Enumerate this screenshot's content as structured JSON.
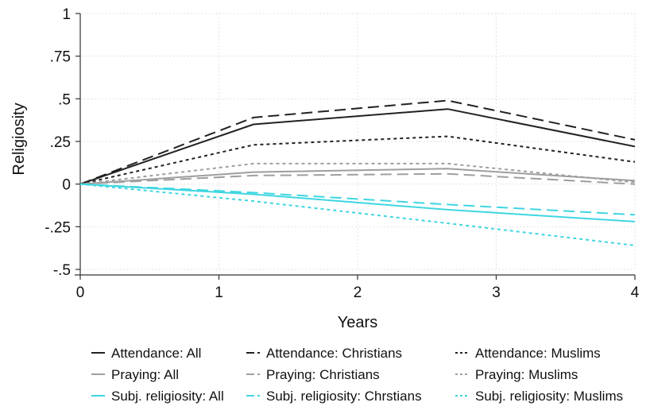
{
  "chart_data": {
    "type": "line",
    "xlabel": "Years",
    "ylabel": "Religiosity",
    "xlim": [
      0,
      4
    ],
    "ylim": [
      -0.5,
      1
    ],
    "x_ticks": [
      {
        "value": 0,
        "label": "0"
      },
      {
        "value": 1,
        "label": "1"
      },
      {
        "value": 2,
        "label": "2"
      },
      {
        "value": 3,
        "label": "3"
      },
      {
        "value": 4,
        "label": "4"
      }
    ],
    "y_ticks": [
      {
        "value": -0.5,
        "label": "-.5"
      },
      {
        "value": -0.25,
        "label": "-.25"
      },
      {
        "value": 0,
        "label": "0"
      },
      {
        "value": 0.25,
        "label": ".25"
      },
      {
        "value": 0.5,
        "label": ".5"
      },
      {
        "value": 0.75,
        "label": ".75"
      },
      {
        "value": 1,
        "label": "1"
      }
    ],
    "grid": true,
    "legend_position": "bottom",
    "series": [
      {
        "name": "Attendance: All",
        "color": "#222222",
        "style": "solid",
        "x": [
          0,
          1.25,
          2.65,
          4
        ],
        "y": [
          0,
          0.35,
          0.44,
          0.22
        ]
      },
      {
        "name": "Attendance: Christians",
        "color": "#222222",
        "style": "dash",
        "x": [
          0,
          1.25,
          2.65,
          4
        ],
        "y": [
          0,
          0.39,
          0.49,
          0.26
        ]
      },
      {
        "name": "Attendance: Muslims",
        "color": "#222222",
        "style": "dot",
        "x": [
          0,
          1.25,
          2.65,
          4
        ],
        "y": [
          0,
          0.23,
          0.28,
          0.13
        ]
      },
      {
        "name": "Praying: All",
        "color": "#9e9e9e",
        "style": "solid",
        "x": [
          0,
          1.25,
          2.65,
          4
        ],
        "y": [
          0,
          0.07,
          0.09,
          0.02
        ]
      },
      {
        "name": "Praying: Christians",
        "color": "#9e9e9e",
        "style": "dash",
        "x": [
          0,
          1.25,
          2.65,
          4
        ],
        "y": [
          0,
          0.05,
          0.06,
          0.0
        ]
      },
      {
        "name": "Praying: Muslims",
        "color": "#9e9e9e",
        "style": "dot",
        "x": [
          0,
          1.25,
          2.65,
          4
        ],
        "y": [
          0,
          0.12,
          0.12,
          0.01
        ]
      },
      {
        "name": "Subj. religiosity: All",
        "color": "#3fd6e0",
        "style": "solid",
        "x": [
          0,
          1.25,
          2.65,
          4
        ],
        "y": [
          0,
          -0.06,
          -0.15,
          -0.22
        ]
      },
      {
        "name": "Subj. religiosity: Chrstians",
        "color": "#3fd6e0",
        "style": "dash",
        "x": [
          0,
          1.25,
          2.65,
          4
        ],
        "y": [
          0,
          -0.05,
          -0.12,
          -0.18
        ]
      },
      {
        "name": "Subj. religiosity: Muslims",
        "color": "#3fd6e0",
        "style": "dot",
        "x": [
          0,
          1.25,
          2.65,
          4
        ],
        "y": [
          0,
          -0.1,
          -0.23,
          -0.36
        ]
      }
    ]
  }
}
